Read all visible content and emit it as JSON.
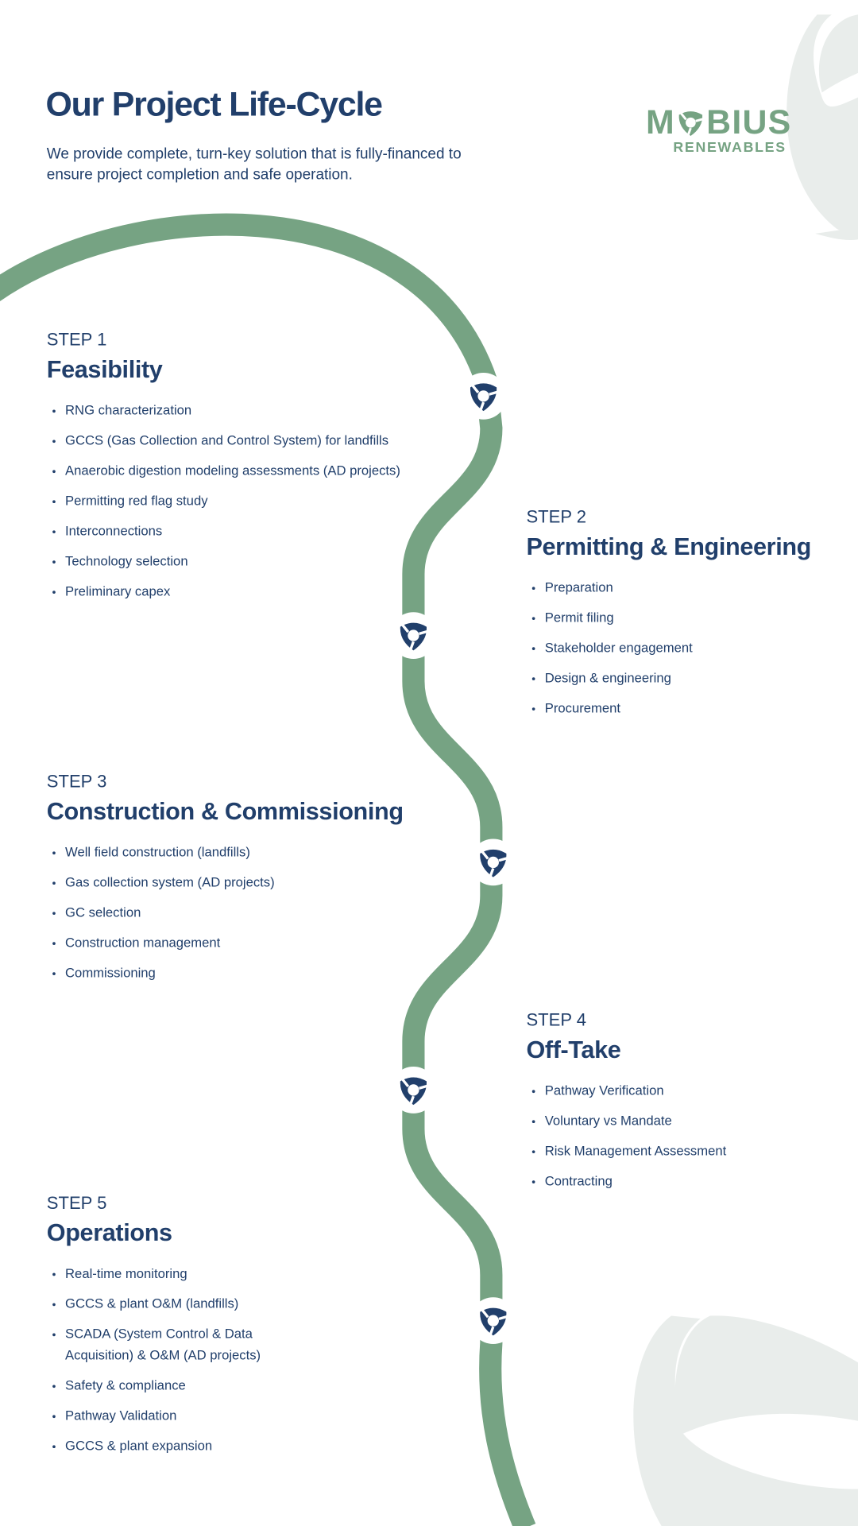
{
  "header": {
    "title": "Our Project Life-Cycle",
    "subtitle": "We provide complete, turn-key solution that is fully-financed to ensure project completion and safe operation."
  },
  "logo": {
    "word_pre": "M",
    "word_post": "BIUS",
    "tagline": "RENEWABLES",
    "color": "#76a383"
  },
  "colors": {
    "navy": "#213f6b",
    "path_green": "#76a383",
    "bg_shape": "#e9edeb"
  },
  "steps": [
    {
      "label": "STEP 1",
      "title": "Feasibility",
      "items": [
        "RNG characterization",
        "GCCS (Gas Collection and Control System) for landfills",
        "Anaerobic digestion modeling assessments (AD projects)",
        "Permitting red flag study",
        "Interconnections",
        "Technology selection",
        "Preliminary capex"
      ]
    },
    {
      "label": "STEP 2",
      "title": "Permitting & Engineering",
      "items": [
        "Preparation",
        "Permit filing",
        "Stakeholder engagement",
        "Design & engineering",
        "Procurement"
      ]
    },
    {
      "label": "STEP 3",
      "title": "Construction & Commissioning",
      "items": [
        "Well field construction (landfills)",
        "Gas collection system (AD projects)",
        "GC selection",
        "Construction management",
        "Commissioning"
      ]
    },
    {
      "label": "STEP 4",
      "title": "Off-Take",
      "items": [
        "Pathway Verification",
        "Voluntary vs Mandate",
        "Risk Management Assessment",
        "Contracting"
      ]
    },
    {
      "label": "STEP 5",
      "title": "Operations",
      "items": [
        "Real-time monitoring",
        "GCCS & plant O&M (landfills)",
        "SCADA (System Control & Data Acquisition) & O&M (AD projects)",
        "Safety & compliance",
        "Pathway Validation",
        "GCCS & plant expansion"
      ]
    }
  ]
}
